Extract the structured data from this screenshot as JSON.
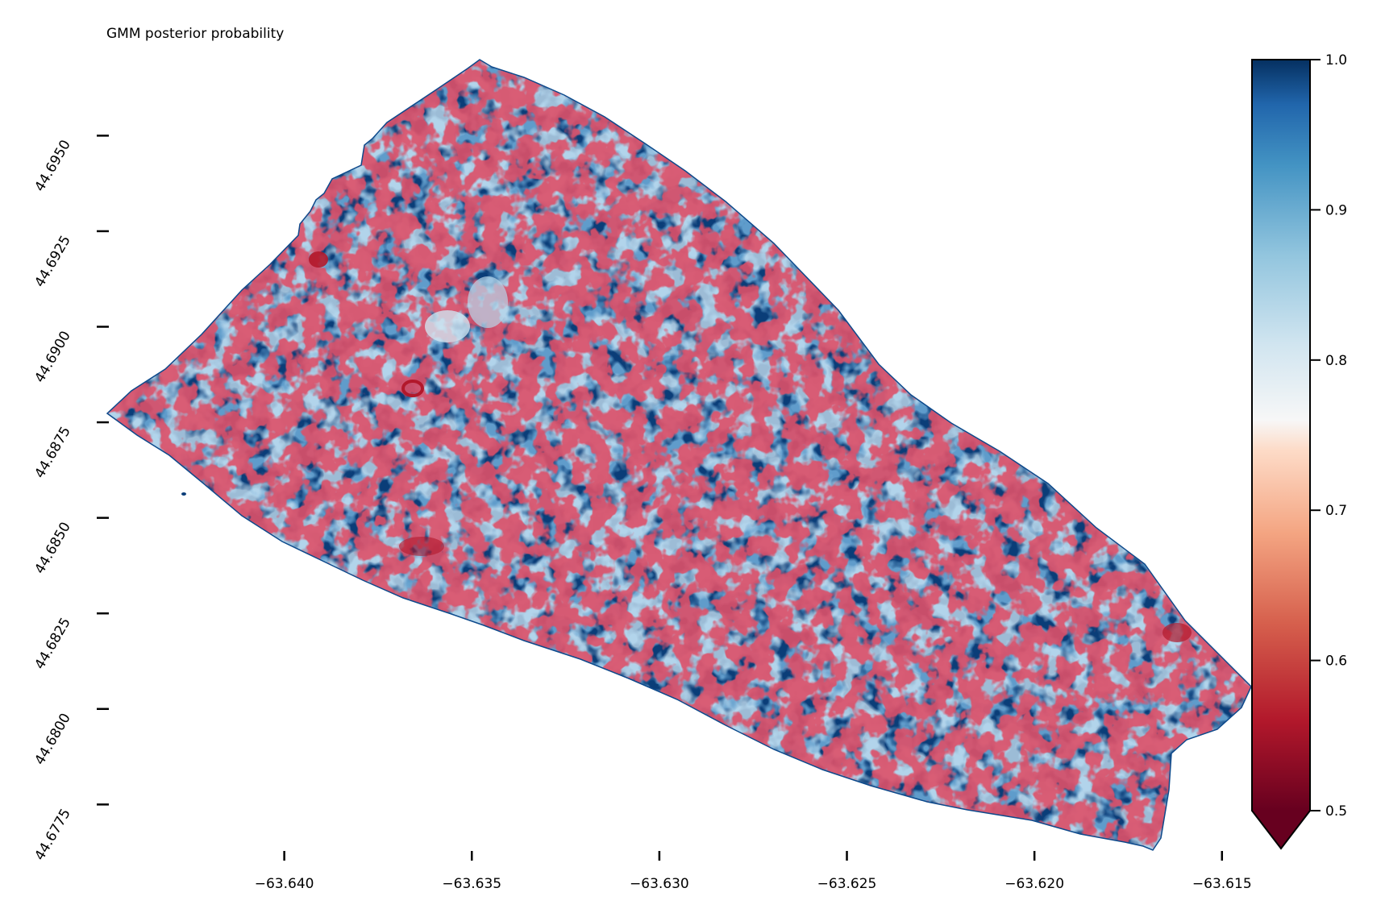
{
  "title": "GMM posterior probability",
  "chart_data": {
    "type": "heatmap",
    "title": "GMM posterior probability",
    "xlabel": "",
    "ylabel": "",
    "x_ticks": [
      -63.64,
      -63.635,
      -63.63,
      -63.625,
      -63.62,
      -63.615
    ],
    "x_tick_labels": [
      "−63.640",
      "−63.635",
      "−63.630",
      "−63.625",
      "−63.620",
      "−63.615"
    ],
    "y_ticks": [
      44.6775,
      44.68,
      44.6825,
      44.685,
      44.6875,
      44.69,
      44.6925,
      44.695
    ],
    "y_tick_labels": [
      "44.6775",
      "44.6800",
      "44.6825",
      "44.6850",
      "44.6875",
      "44.6900",
      "44.6925",
      "44.6950"
    ],
    "xlim": [
      -63.645,
      -63.6142
    ],
    "ylim": [
      44.6762,
      44.6972
    ],
    "colorbar": {
      "colormap": "RdBu",
      "range": [
        0.5,
        1.0
      ],
      "extend": "min",
      "ticks": [
        0.5,
        0.6,
        0.7,
        0.8,
        0.9,
        1.0
      ],
      "tick_labels": [
        "0.5",
        "0.6",
        "0.7",
        "0.8",
        "0.9",
        "1.0"
      ]
    },
    "dominant_value": 1.0,
    "grid": false
  }
}
